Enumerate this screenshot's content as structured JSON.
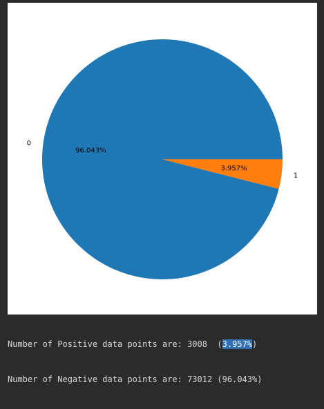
{
  "chart_data": {
    "type": "pie",
    "categories": [
      "0",
      "1"
    ],
    "values": [
      96.043,
      3.957
    ],
    "slice_labels": [
      "0",
      "1"
    ],
    "autopct_labels": [
      "96.043%",
      "3.957%"
    ],
    "colors": [
      "#1f77b4",
      "#ff7f0e"
    ],
    "counterclockwise": true
  },
  "console": {
    "positive_prefix": "Number of Positive data points are: 3008  (",
    "positive_pct": "3.957%",
    "positive_suffix": ")",
    "negative_line": "Number of Negative data points are: 73012 (96.043%)"
  }
}
